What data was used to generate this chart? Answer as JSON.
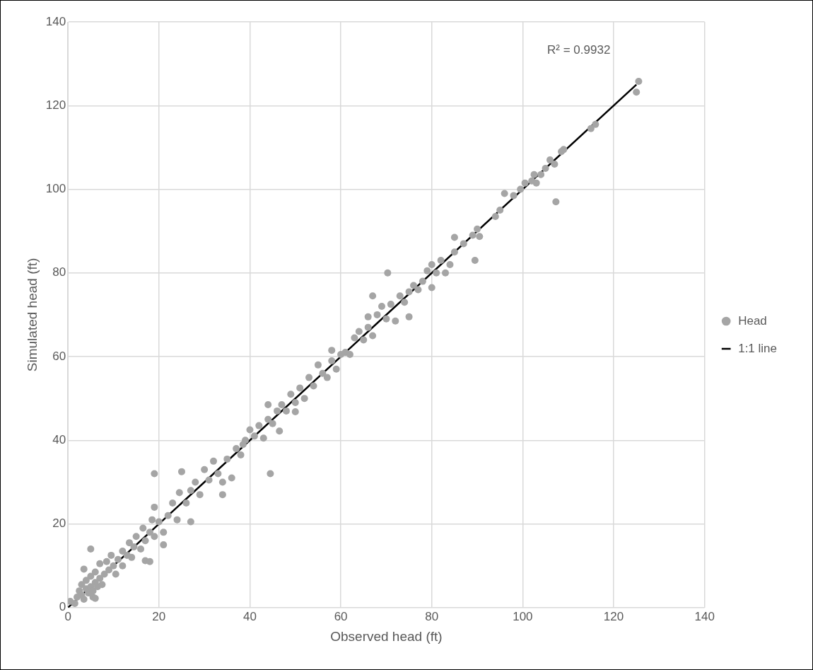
{
  "chart_data": {
    "type": "scatter",
    "xlabel": "Observed head (ft)",
    "ylabel": "Simulated head (ft)",
    "xlim": [
      0,
      140
    ],
    "xticks": [
      0,
      20,
      40,
      60,
      80,
      100,
      120,
      140
    ],
    "ylim": [
      0,
      140
    ],
    "yticks": [
      0,
      20,
      40,
      60,
      80,
      100,
      120,
      140
    ],
    "grid": true,
    "legend": "right",
    "annotations": [
      "R² = 0.9932"
    ],
    "series": [
      {
        "name": "Head",
        "type": "scatter",
        "color": "#a5a5a5",
        "marker": "circle",
        "x": [
          0.5,
          1.5,
          2,
          2.5,
          3,
          3,
          3.5,
          4,
          4,
          4.5,
          5,
          5,
          5.5,
          5.5,
          6,
          6,
          6.5,
          7,
          7,
          7.5,
          8,
          8.5,
          9,
          9.5,
          10,
          3.5,
          5,
          6,
          10.5,
          11,
          12,
          12,
          13,
          13.5,
          14,
          14.5,
          15,
          16,
          16.5,
          17,
          17,
          18,
          18,
          18.5,
          19,
          19,
          19,
          20,
          21,
          21,
          22,
          23,
          24,
          24.5,
          25,
          26,
          27,
          27,
          28,
          29,
          30,
          31,
          32,
          33,
          34,
          34,
          35,
          36,
          37,
          38,
          39,
          40,
          38.5,
          41,
          42,
          43,
          44,
          44.5,
          44,
          45,
          46,
          46.5,
          47,
          48,
          49,
          50,
          50,
          51,
          52,
          53,
          54,
          55,
          56,
          57,
          58,
          58,
          59,
          60,
          61,
          62,
          63,
          64,
          65,
          66,
          66,
          67,
          67,
          68,
          69,
          70,
          70.3,
          71,
          72,
          73,
          74,
          75,
          75,
          76,
          77,
          78,
          79,
          80,
          80,
          81,
          82,
          83,
          84,
          85,
          85,
          87,
          89,
          89.5,
          90,
          90.5,
          94,
          95,
          96,
          98,
          99.5,
          100.5,
          102,
          102.5,
          103,
          104,
          105,
          106,
          107,
          107.3,
          108.5,
          109,
          115,
          116,
          125,
          125.5
        ],
        "values": [
          1.5,
          1,
          2.5,
          4,
          3,
          5.5,
          2,
          4.5,
          6.5,
          3.5,
          5,
          7.5,
          2.5,
          4,
          6,
          8.5,
          5,
          7,
          10.5,
          5.5,
          8,
          11,
          9,
          12.5,
          10,
          9.2,
          14,
          2.2,
          8,
          11.5,
          13.5,
          10,
          12.5,
          15.5,
          12,
          14.5,
          17,
          14,
          19,
          16,
          11.2,
          18,
          11,
          21,
          17,
          24,
          32,
          20.5,
          15,
          18,
          22,
          25,
          21,
          27.5,
          32.5,
          25,
          28,
          20.5,
          30,
          27,
          33,
          30.5,
          35,
          32,
          27,
          30,
          35.5,
          31,
          38,
          36.5,
          40,
          42.5,
          39,
          41,
          43.5,
          40.5,
          45,
          32,
          48.5,
          44,
          47,
          42.2,
          48.5,
          47,
          51,
          49,
          46.8,
          52.5,
          50,
          55,
          53,
          58,
          56,
          55,
          59,
          61.5,
          57,
          60.5,
          61,
          60.5,
          64.5,
          66,
          64,
          67,
          69.5,
          74.5,
          65,
          70,
          72,
          69,
          80,
          72.5,
          68.5,
          74.5,
          73,
          69.5,
          75.5,
          77,
          76,
          78,
          80.5,
          76.5,
          82,
          80,
          83,
          80,
          82,
          88.5,
          85,
          87,
          89,
          83,
          90.5,
          88.7,
          93.5,
          95,
          99,
          98.5,
          100,
          101.5,
          102,
          103.5,
          101.5,
          103.5,
          105,
          107,
          106,
          97,
          109,
          109.5,
          114.5,
          115.5,
          123.2,
          125.8
        ]
      },
      {
        "name": "1:1 line",
        "type": "line",
        "color": "#000000",
        "line_style": "solid",
        "x": [
          0,
          125
        ],
        "values": [
          0,
          125
        ]
      }
    ]
  }
}
